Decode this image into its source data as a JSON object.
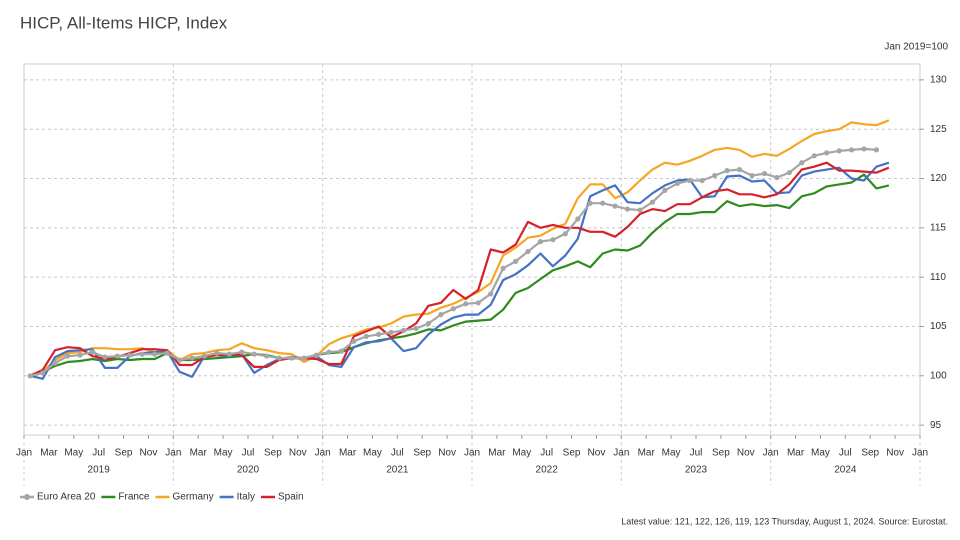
{
  "chart_data": {
    "type": "line",
    "title": "HICP, All-Items HICP, Index",
    "y_axis_label": "Jan 2019=100",
    "footnote": "Latest value: 121, 122, 126, 119, 123 Thursday, August 1, 2024. Source: Eurostat.",
    "x": [
      "2019-01",
      "2019-02",
      "2019-03",
      "2019-04",
      "2019-05",
      "2019-06",
      "2019-07",
      "2019-08",
      "2019-09",
      "2019-10",
      "2019-11",
      "2019-12",
      "2020-01",
      "2020-02",
      "2020-03",
      "2020-04",
      "2020-05",
      "2020-06",
      "2020-07",
      "2020-08",
      "2020-09",
      "2020-10",
      "2020-11",
      "2020-12",
      "2021-01",
      "2021-02",
      "2021-03",
      "2021-04",
      "2021-05",
      "2021-06",
      "2021-07",
      "2021-08",
      "2021-09",
      "2021-10",
      "2021-11",
      "2021-12",
      "2022-01",
      "2022-02",
      "2022-03",
      "2022-04",
      "2022-05",
      "2022-06",
      "2022-07",
      "2022-08",
      "2022-09",
      "2022-10",
      "2022-11",
      "2022-12",
      "2023-01",
      "2023-02",
      "2023-03",
      "2023-04",
      "2023-05",
      "2023-06",
      "2023-07",
      "2023-08",
      "2023-09",
      "2023-10",
      "2023-11",
      "2023-12",
      "2024-01",
      "2024-02",
      "2024-03",
      "2024-04",
      "2024-05",
      "2024-06",
      "2024-07",
      "2024-08",
      "2024-09",
      "2024-10"
    ],
    "series": [
      {
        "name": "Euro Area 20",
        "color": "#a5a5a5",
        "markers": true,
        "values": [
          100,
          100.3,
          101.3,
          102.0,
          102.1,
          102.4,
          101.9,
          102.0,
          102.1,
          102.2,
          102.2,
          102.3,
          101.6,
          101.8,
          102.0,
          102.3,
          102.2,
          102.4,
          102.2,
          102.0,
          101.8,
          101.8,
          101.8,
          102.1,
          102.4,
          102.5,
          103.5,
          104.0,
          104.2,
          104.4,
          104.6,
          104.8,
          105.3,
          106.2,
          106.8,
          107.3,
          107.4,
          108.3,
          110.9,
          111.6,
          112.6,
          113.6,
          113.8,
          114.4,
          115.9,
          117.5,
          117.5,
          117.2,
          116.9,
          116.8,
          117.6,
          118.8,
          119.5,
          119.8,
          119.8,
          120.3,
          120.8,
          120.9,
          120.3,
          120.5,
          120.1,
          120.6,
          121.6,
          122.3,
          122.6,
          122.8,
          122.9,
          123.0,
          122.9,
          null
        ]
      },
      {
        "name": "France",
        "color": "#2e8b1e",
        "markers": false,
        "values": [
          100,
          100.4,
          101.0,
          101.4,
          101.5,
          101.7,
          101.5,
          101.7,
          101.6,
          101.7,
          101.7,
          102.3,
          101.6,
          101.6,
          101.7,
          101.8,
          101.9,
          102.0,
          102.2,
          102.1,
          101.8,
          101.8,
          101.8,
          102.1,
          102.3,
          102.4,
          102.9,
          103.3,
          103.6,
          103.8,
          104.0,
          104.3,
          104.7,
          104.6,
          105.1,
          105.5,
          105.6,
          105.7,
          106.7,
          108.4,
          108.9,
          109.8,
          110.7,
          111.1,
          111.6,
          111.0,
          112.4,
          112.8,
          112.7,
          113.2,
          114.5,
          115.6,
          116.4,
          116.4,
          116.6,
          116.6,
          117.7,
          117.2,
          117.4,
          117.2,
          117.3,
          117.0,
          118.2,
          118.5,
          119.2,
          119.4,
          119.6,
          120.4,
          119.0,
          119.3
        ]
      },
      {
        "name": "Germany",
        "color": "#f5a623",
        "markers": false,
        "values": [
          100,
          100.4,
          101.6,
          102.3,
          102.4,
          102.8,
          102.8,
          102.7,
          102.7,
          102.8,
          102.4,
          102.6,
          101.6,
          102.2,
          102.3,
          102.6,
          102.7,
          103.3,
          102.8,
          102.6,
          102.3,
          102.2,
          101.4,
          102.0,
          103.2,
          103.8,
          104.2,
          104.7,
          104.9,
          105.3,
          106.0,
          106.2,
          106.3,
          106.9,
          107.3,
          107.9,
          108.5,
          109.4,
          112.2,
          113.0,
          114.0,
          114.2,
          114.9,
          115.4,
          118.0,
          119.4,
          119.4,
          118.0,
          118.6,
          119.8,
          120.9,
          121.6,
          121.4,
          121.8,
          122.3,
          122.9,
          123.1,
          122.9,
          122.2,
          122.5,
          122.3,
          123.0,
          123.8,
          124.5,
          124.8,
          125.0,
          125.7,
          125.5,
          125.4,
          125.9
        ]
      },
      {
        "name": "Italy",
        "color": "#4472c4",
        "markers": false,
        "values": [
          100,
          99.7,
          101.9,
          102.5,
          102.6,
          102.7,
          100.8,
          100.8,
          102.0,
          102.3,
          102.4,
          102.5,
          100.4,
          99.9,
          102.0,
          102.1,
          102.0,
          102.2,
          100.3,
          101.1,
          101.7,
          101.9,
          101.8,
          102.0,
          101.1,
          100.9,
          102.9,
          103.4,
          103.5,
          103.8,
          102.5,
          102.8,
          104.2,
          105.2,
          105.9,
          106.2,
          106.2,
          107.2,
          109.7,
          110.3,
          111.2,
          112.4,
          111.1,
          112.2,
          113.9,
          118.2,
          118.8,
          119.3,
          117.6,
          117.5,
          118.5,
          119.3,
          119.8,
          119.9,
          118.1,
          118.2,
          120.2,
          120.3,
          119.7,
          119.8,
          118.5,
          118.6,
          120.3,
          120.7,
          120.9,
          121.1,
          120.0,
          119.8,
          121.2,
          121.6
        ]
      },
      {
        "name": "Spain",
        "color": "#d6202a",
        "markers": false,
        "values": [
          100,
          100.6,
          102.6,
          102.9,
          102.8,
          102.0,
          101.7,
          101.9,
          102.3,
          102.7,
          102.7,
          102.6,
          101.1,
          101.1,
          101.9,
          102.1,
          102.2,
          102.1,
          100.9,
          100.9,
          101.6,
          101.8,
          101.8,
          101.7,
          101.2,
          101.2,
          104.0,
          104.5,
          105.0,
          103.9,
          104.5,
          105.3,
          107.1,
          107.4,
          108.7,
          107.8,
          108.7,
          112.8,
          112.5,
          113.3,
          115.6,
          115.0,
          115.3,
          115.0,
          115.0,
          114.6,
          114.6,
          114.1,
          115.1,
          116.4,
          116.9,
          116.7,
          117.4,
          117.4,
          118.1,
          118.7,
          118.9,
          118.4,
          118.4,
          118.1,
          118.4,
          119.4,
          120.9,
          121.2,
          121.6,
          120.8,
          120.8,
          120.7,
          120.6,
          121.1
        ]
      }
    ],
    "xlim": [
      "2019-01",
      "2025-01"
    ],
    "xticks": [
      {
        "value": "2019-01",
        "label": "Jan"
      },
      {
        "value": "2019-03",
        "label": "Mar"
      },
      {
        "value": "2019-05",
        "label": "May"
      },
      {
        "value": "2019-07",
        "label": "Jul"
      },
      {
        "value": "2019-09",
        "label": "Sep"
      },
      {
        "value": "2019-11",
        "label": "Nov"
      },
      {
        "value": "2020-01",
        "label": "Jan"
      },
      {
        "value": "2020-03",
        "label": "Mar"
      },
      {
        "value": "2020-05",
        "label": "May"
      },
      {
        "value": "2020-07",
        "label": "Jul"
      },
      {
        "value": "2020-09",
        "label": "Sep"
      },
      {
        "value": "2020-11",
        "label": "Nov"
      },
      {
        "value": "2021-01",
        "label": "Jan"
      },
      {
        "value": "2021-03",
        "label": "Mar"
      },
      {
        "value": "2021-05",
        "label": "May"
      },
      {
        "value": "2021-07",
        "label": "Jul"
      },
      {
        "value": "2021-09",
        "label": "Sep"
      },
      {
        "value": "2021-11",
        "label": "Nov"
      },
      {
        "value": "2022-01",
        "label": "Jan"
      },
      {
        "value": "2022-03",
        "label": "Mar"
      },
      {
        "value": "2022-05",
        "label": "May"
      },
      {
        "value": "2022-07",
        "label": "Jul"
      },
      {
        "value": "2022-09",
        "label": "Sep"
      },
      {
        "value": "2022-11",
        "label": "Nov"
      },
      {
        "value": "2023-01",
        "label": "Jan"
      },
      {
        "value": "2023-03",
        "label": "Mar"
      },
      {
        "value": "2023-05",
        "label": "May"
      },
      {
        "value": "2023-07",
        "label": "Jul"
      },
      {
        "value": "2023-09",
        "label": "Sep"
      },
      {
        "value": "2023-11",
        "label": "Nov"
      },
      {
        "value": "2024-01",
        "label": "Jan"
      },
      {
        "value": "2024-03",
        "label": "Mar"
      },
      {
        "value": "2024-05",
        "label": "May"
      },
      {
        "value": "2024-07",
        "label": "Jul"
      },
      {
        "value": "2024-09",
        "label": "Sep"
      },
      {
        "value": "2024-11",
        "label": "Nov"
      },
      {
        "value": "2025-01",
        "label": "Jan"
      }
    ],
    "xgroups": [
      {
        "value": "2019-07",
        "label": "2019"
      },
      {
        "value": "2020-07",
        "label": "2020"
      },
      {
        "value": "2021-07",
        "label": "2021"
      },
      {
        "value": "2022-07",
        "label": "2022"
      },
      {
        "value": "2023-07",
        "label": "2023"
      },
      {
        "value": "2024-07",
        "label": "2024"
      }
    ],
    "ylim": [
      94,
      131
    ],
    "yticks": [
      95,
      100,
      105,
      110,
      115,
      120,
      125,
      130
    ],
    "grid": true,
    "legend": "bottom-left"
  }
}
